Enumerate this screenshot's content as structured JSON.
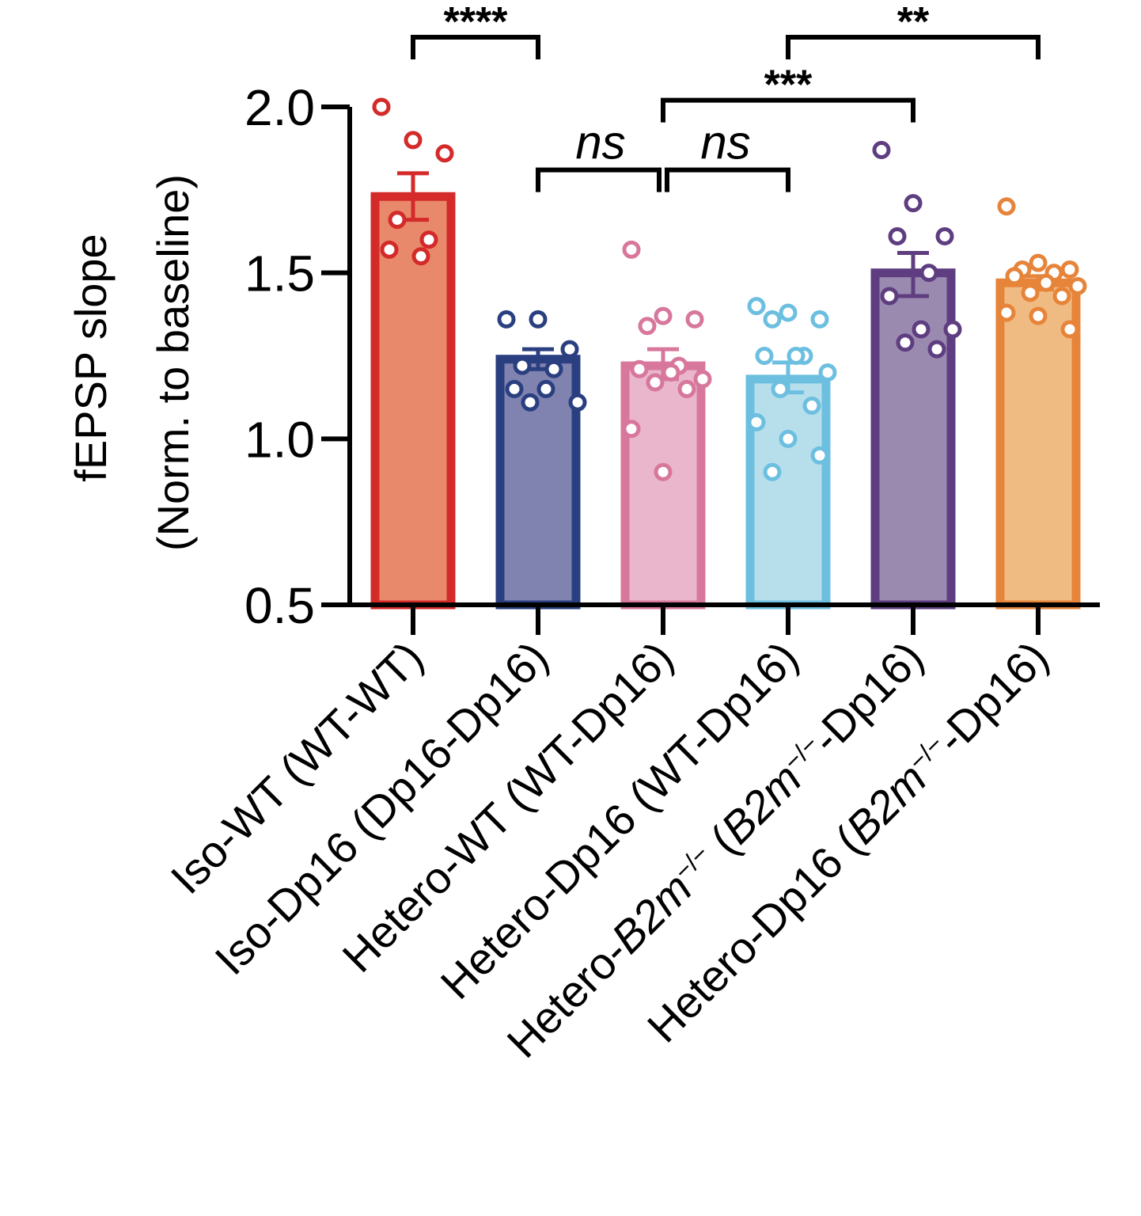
{
  "chart_data": {
    "type": "bar",
    "ylabel_line1": "fEPSP slope",
    "ylabel_line2": "(Norm. to baseline)",
    "xlabel": "",
    "ylim": [
      0.5,
      2.0
    ],
    "yticks": [
      0.5,
      1.0,
      1.5,
      2.0
    ],
    "ytick_labels": [
      "0.5",
      "1.0",
      "1.5",
      "2.0"
    ],
    "categories": [
      {
        "label_parts": [
          {
            "text": "Iso-WT (WT-WT)"
          }
        ],
        "mean": 1.73,
        "sem_low": 1.66,
        "sem_high": 1.8,
        "edge_color": "#d42a2a",
        "fill_color": "#e8896c",
        "points": [
          2.0,
          1.9,
          1.86,
          1.66,
          1.6,
          1.57,
          1.55
        ]
      },
      {
        "label_parts": [
          {
            "text": "Iso-Dp16 (Dp16-Dp16)"
          }
        ],
        "mean": 1.24,
        "sem_low": 1.21,
        "sem_high": 1.27,
        "edge_color": "#2a3f80",
        "fill_color": "#8083b0",
        "points": [
          1.36,
          1.36,
          1.27,
          1.22,
          1.21,
          1.15,
          1.15,
          1.11,
          1.11
        ]
      },
      {
        "label_parts": [
          {
            "text": "Hetero-WT (WT-Dp16)"
          }
        ],
        "mean": 1.22,
        "sem_low": 1.18,
        "sem_high": 1.27,
        "edge_color": "#d8779c",
        "fill_color": "#e9b6cb",
        "points": [
          1.57,
          1.37,
          1.36,
          1.34,
          1.22,
          1.21,
          1.2,
          1.18,
          1.17,
          1.15,
          1.03,
          0.9
        ]
      },
      {
        "label_parts": [
          {
            "text": "Hetero-Dp16 (WT-Dp16)"
          }
        ],
        "mean": 1.18,
        "sem_low": 1.14,
        "sem_high": 1.23,
        "edge_color": "#6dbfe0",
        "fill_color": "#b6dfeb",
        "points": [
          1.4,
          1.38,
          1.36,
          1.36,
          1.25,
          1.25,
          1.25,
          1.2,
          1.15,
          1.1,
          1.05,
          1.0,
          0.95,
          0.9
        ]
      },
      {
        "label_parts": [
          {
            "text": "Hetero-"
          },
          {
            "text": "B2m",
            "italic": true
          },
          {
            "text": "−/−",
            "sup": true
          },
          {
            "text": " ("
          },
          {
            "text": "B2m",
            "italic": true
          },
          {
            "text": "−/−",
            "sup": true
          },
          {
            "text": "-Dp16)"
          }
        ],
        "mean": 1.5,
        "sem_low": 1.43,
        "sem_high": 1.56,
        "edge_color": "#5e3d80",
        "fill_color": "#9b8ab0",
        "points": [
          1.87,
          1.71,
          1.61,
          1.61,
          1.5,
          1.43,
          1.33,
          1.33,
          1.29,
          1.27
        ]
      },
      {
        "label_parts": [
          {
            "text": "Hetero-Dp16 ("
          },
          {
            "text": "B2m",
            "italic": true
          },
          {
            "text": "−/−",
            "sup": true
          },
          {
            "text": "-Dp16)"
          }
        ],
        "mean": 1.47,
        "sem_low": 1.45,
        "sem_high": 1.49,
        "edge_color": "#e6843a",
        "fill_color": "#f0bb82",
        "points": [
          1.7,
          1.53,
          1.51,
          1.51,
          1.5,
          1.49,
          1.47,
          1.46,
          1.44,
          1.43,
          1.38,
          1.37,
          1.33
        ]
      }
    ],
    "significance": [
      {
        "from": 0,
        "to": 1,
        "label": "****",
        "italic": false,
        "level": 2.21
      },
      {
        "from": 3,
        "to": 5,
        "label": "**",
        "italic": false,
        "level": 2.21
      },
      {
        "from": 2,
        "to": 4,
        "label": "***",
        "italic": false,
        "level": 2.02
      },
      {
        "from": 1,
        "to": 2,
        "label": "ns",
        "italic": true,
        "level": 1.81
      },
      {
        "from": 2,
        "to": 3,
        "label": "ns",
        "italic": true,
        "level": 1.81
      }
    ]
  }
}
